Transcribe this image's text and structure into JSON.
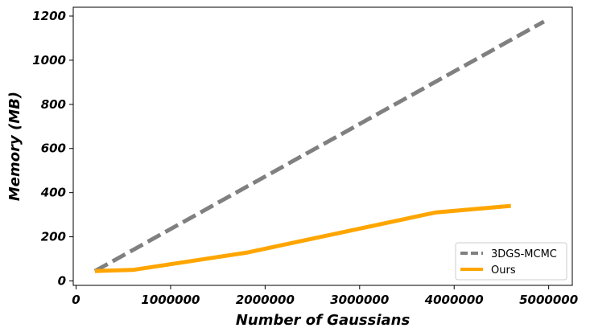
{
  "chart_data": {
    "type": "line",
    "title": "",
    "xlabel": "Number of Gaussians",
    "ylabel": "Memory (MB)",
    "xlim": [
      -30000,
      5250000
    ],
    "ylim": [
      -20,
      1240
    ],
    "xticks": [
      0,
      1000000,
      2000000,
      3000000,
      4000000,
      5000000
    ],
    "xtick_labels": [
      "0",
      "1000000",
      "2000000",
      "3000000",
      "4000000",
      "5000000"
    ],
    "yticks": [
      0,
      200,
      400,
      600,
      800,
      1000,
      1200
    ],
    "ytick_labels": [
      "0",
      "200",
      "400",
      "600",
      "800",
      "1000",
      "1200"
    ],
    "grid": false,
    "legend_position": "bottom-right",
    "series": [
      {
        "name": "3DGS-MCMC",
        "color": "#808080",
        "dashed": true,
        "x": [
          200000,
          4950000
        ],
        "y": [
          45,
          1175
        ]
      },
      {
        "name": "Ours",
        "color": "#FFA500",
        "dashed": false,
        "x": [
          200000,
          600000,
          1800000,
          3800000,
          4600000
        ],
        "y": [
          45,
          50,
          128,
          310,
          340
        ]
      }
    ]
  }
}
